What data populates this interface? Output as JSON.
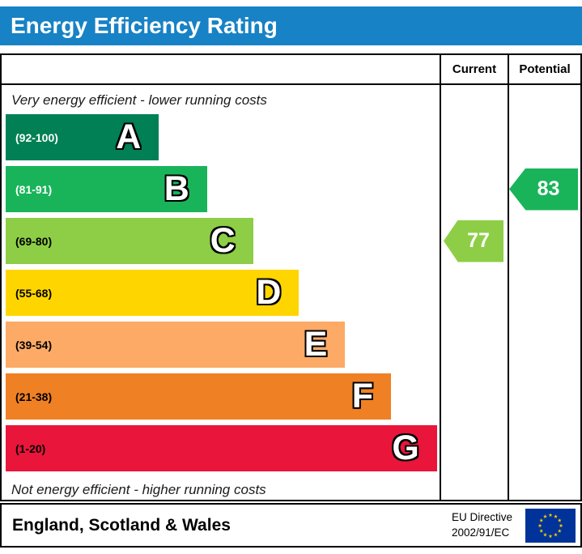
{
  "title": "Energy Efficiency Rating",
  "columns": {
    "current": "Current",
    "potential": "Potential"
  },
  "captions": {
    "top": "Very energy efficient - lower running costs",
    "bottom": "Not energy efficient - higher running costs"
  },
  "bands": [
    {
      "letter": "A",
      "range": "(92-100)",
      "color": "#008054",
      "text_color": "#ffffff",
      "width_pct": 35
    },
    {
      "letter": "B",
      "range": "(81-91)",
      "color": "#19b459",
      "text_color": "#ffffff",
      "width_pct": 46
    },
    {
      "letter": "C",
      "range": "(69-80)",
      "color": "#8dce46",
      "text_color": "#000000",
      "width_pct": 56.5
    },
    {
      "letter": "D",
      "range": "(55-68)",
      "color": "#ffd500",
      "text_color": "#000000",
      "width_pct": 67
    },
    {
      "letter": "E",
      "range": "(39-54)",
      "color": "#fcaa65",
      "text_color": "#000000",
      "width_pct": 77.5
    },
    {
      "letter": "F",
      "range": "(21-38)",
      "color": "#ef8023",
      "text_color": "#000000",
      "width_pct": 88
    },
    {
      "letter": "G",
      "range": "(1-20)",
      "color": "#e9153b",
      "text_color": "#000000",
      "width_pct": 98.5
    }
  ],
  "ratings": {
    "current": {
      "label": "Current",
      "value": "77",
      "band": "C",
      "color": "#8dce46"
    },
    "potential": {
      "label": "Potential",
      "value": "83",
      "band": "B",
      "color": "#19b459"
    }
  },
  "footer": {
    "region": "England, Scotland & Wales",
    "directive_line1": "EU Directive",
    "directive_line2": "2002/91/EC"
  },
  "colors": {
    "header_bar": "#1782c5",
    "eu_flag_blue": "#003399",
    "eu_flag_stars": "#ffcc00"
  },
  "chart_data": {
    "type": "bar",
    "title": "Energy Efficiency Rating",
    "categories": [
      "A",
      "B",
      "C",
      "D",
      "E",
      "F",
      "G"
    ],
    "band_labels": [
      "(92-100)",
      "(81-91)",
      "(69-80)",
      "(55-68)",
      "(39-54)",
      "(21-38)",
      "(1-20)"
    ],
    "band_ranges": [
      [
        92,
        100
      ],
      [
        81,
        91
      ],
      [
        69,
        80
      ],
      [
        55,
        68
      ],
      [
        39,
        54
      ],
      [
        21,
        38
      ],
      [
        1,
        20
      ]
    ],
    "markers": [
      {
        "name": "Current",
        "value": 77,
        "band": "C"
      },
      {
        "name": "Potential",
        "value": 83,
        "band": "B"
      }
    ],
    "annotations": {
      "top": "Very energy efficient - lower running costs",
      "bottom": "Not energy efficient - higher running costs"
    },
    "footer_region": "England, Scotland & Wales",
    "footer_directive": "EU Directive 2002/91/EC",
    "xlim": [
      1,
      100
    ]
  }
}
